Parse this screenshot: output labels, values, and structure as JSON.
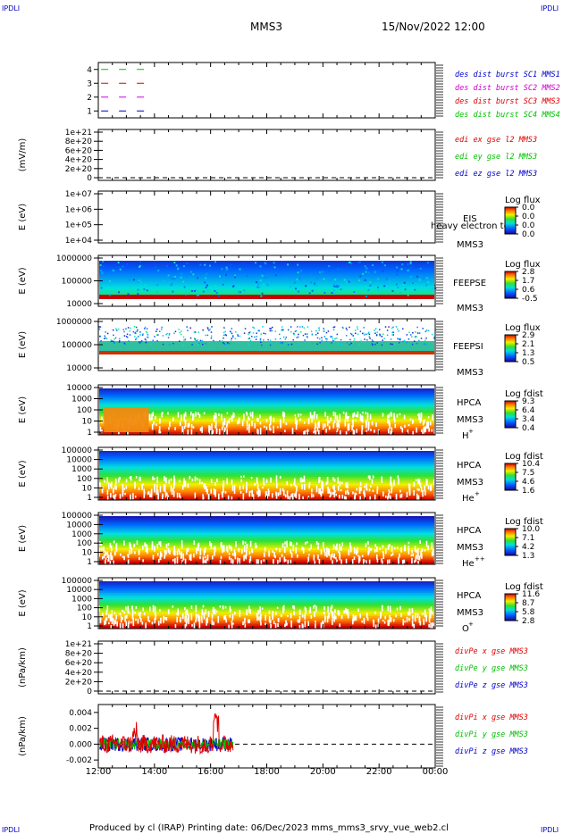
{
  "header": {
    "corner_label": "IPDLI",
    "spacecraft": "MMS3",
    "datetime": "15/Nov/2022 12:00"
  },
  "footer": {
    "text": "Produced by cl (IRAP)   Printing date: 06/Dec/2023   mms_mms3_srvy_vue_web2.cl"
  },
  "colors": {
    "red": "#e00000",
    "green": "#00c000",
    "blue": "#0000c8",
    "magenta": "#d000d0"
  },
  "chart_data": [
    {
      "type": "line",
      "panel": "burst",
      "ylabel": "",
      "yticks": [
        "1",
        "2",
        "3",
        "4"
      ],
      "ylim": [
        0.5,
        4.5
      ],
      "series": [
        {
          "name": "des dist burst SC1 MMS1",
          "color": "#0000c8",
          "y": 1,
          "x_hours": [
            0.1,
            1.8
          ]
        },
        {
          "name": "des dist burst SC2 MMS2",
          "color": "#d000d0",
          "y": 2,
          "x_hours": [
            0.1,
            1.8
          ]
        },
        {
          "name": "des dist burst SC3 MMS3",
          "color": "#e00000",
          "y": 3,
          "x_hours": [
            0.1,
            1.8
          ]
        },
        {
          "name": "des dist burst SC4 MMS4",
          "color": "#00c000",
          "y": 4,
          "x_hours": [
            0.1,
            1.8
          ]
        }
      ]
    },
    {
      "type": "line",
      "panel": "edi",
      "ylabel": "(mV/m)",
      "yticks": [
        "0",
        "2e+20",
        "4e+20",
        "6e+20",
        "8e+20",
        "1e+21"
      ],
      "ylim": [
        0,
        1e+21
      ],
      "series": [
        {
          "name": "edi ex gse l2 MMS3",
          "color": "#e00000"
        },
        {
          "name": "edi ey gse l2 MMS3",
          "color": "#00c000"
        },
        {
          "name": "edi ez gse l2 MMS3",
          "color": "#0000c8"
        }
      ]
    },
    {
      "type": "heatmap",
      "panel": "eis",
      "ylabel": "E (eV)",
      "yticks": [
        "1e+04",
        "1e+05",
        "1e+06",
        "1e+07"
      ],
      "labels": [
        "EIS",
        "MMS3"
      ],
      "overlay_label": "heavy electron to",
      "colorbar_title": "Log flux",
      "colorbar_ticks": [
        "0.0",
        "0.0",
        "0.0",
        "0.0"
      ]
    },
    {
      "type": "heatmap",
      "panel": "feepse",
      "ylabel": "E (eV)",
      "yticks": [
        "10000",
        "100000",
        "1000000"
      ],
      "labels": [
        "FEEPSE",
        "MMS3"
      ],
      "colorbar_title": "Log flux",
      "colorbar_ticks": [
        "2.8",
        "1.7",
        "0.6",
        "-0.5"
      ]
    },
    {
      "type": "heatmap",
      "panel": "feepsi",
      "ylabel": "E (eV)",
      "yticks": [
        "10000",
        "100000",
        "1000000"
      ],
      "labels": [
        "FEEPSI",
        "MMS3"
      ],
      "colorbar_title": "Log flux",
      "colorbar_ticks": [
        "2.9",
        "2.1",
        "1.3",
        "0.5"
      ]
    },
    {
      "type": "heatmap",
      "panel": "hpca_h",
      "ylabel": "E (eV)",
      "yticks": [
        "1",
        "10",
        "100",
        "1000",
        "10000"
      ],
      "labels": [
        "HPCA",
        "MMS3",
        "H",
        "+"
      ],
      "colorbar_title": "Log fdist",
      "colorbar_ticks": [
        "9.3",
        "6.4",
        "3.4",
        "0.4"
      ]
    },
    {
      "type": "heatmap",
      "panel": "hpca_he",
      "ylabel": "E (eV)",
      "yticks": [
        "1",
        "10",
        "100",
        "1000",
        "10000",
        "100000"
      ],
      "labels": [
        "HPCA",
        "MMS3",
        "He",
        "+"
      ],
      "colorbar_title": "Log fdist",
      "colorbar_ticks": [
        "10.4",
        "7.5",
        "4.6",
        "1.6"
      ]
    },
    {
      "type": "heatmap",
      "panel": "hpca_hepp",
      "ylabel": "E (eV)",
      "yticks": [
        "1",
        "10",
        "100",
        "1000",
        "10000",
        "100000"
      ],
      "labels": [
        "HPCA",
        "MMS3",
        "He",
        "++"
      ],
      "colorbar_title": "Log fdist",
      "colorbar_ticks": [
        "10.0",
        "7.1",
        "4.2",
        "1.3"
      ]
    },
    {
      "type": "heatmap",
      "panel": "hpca_o",
      "ylabel": "E (eV)",
      "yticks": [
        "1",
        "10",
        "100",
        "1000",
        "10000",
        "100000"
      ],
      "labels": [
        "HPCA",
        "MMS3",
        "O",
        "+"
      ],
      "colorbar_title": "Log fdist",
      "colorbar_ticks": [
        "11.6",
        "8.7",
        "5.8",
        "2.8"
      ]
    },
    {
      "type": "line",
      "panel": "divpe",
      "ylabel": "(nPa/km)",
      "yticks": [
        "0",
        "2e+20",
        "4e+20",
        "6e+20",
        "8e+20",
        "1e+21"
      ],
      "ylim": [
        0,
        1e+21
      ],
      "series": [
        {
          "name": "divPe x gse MMS3",
          "color": "#e00000"
        },
        {
          "name": "divPe y gse MMS3",
          "color": "#00c000"
        },
        {
          "name": "divPe z gse MMS3",
          "color": "#0000c8"
        }
      ]
    },
    {
      "type": "line",
      "panel": "divpi",
      "ylabel": "(nPa/km)",
      "yticks": [
        "-0.002",
        "0.000",
        "0.002",
        "0.004"
      ],
      "ylim": [
        -0.003,
        0.005
      ],
      "series": [
        {
          "name": "divPi x gse MMS3",
          "color": "#e00000"
        },
        {
          "name": "divPi y gse MMS3",
          "color": "#00c000"
        },
        {
          "name": "divPi z gse MMS3",
          "color": "#0000c8"
        }
      ]
    }
  ],
  "xaxis": {
    "ticks": [
      "12:00",
      "14:00",
      "16:00",
      "18:00",
      "20:00",
      "22:00",
      "00:00"
    ]
  }
}
